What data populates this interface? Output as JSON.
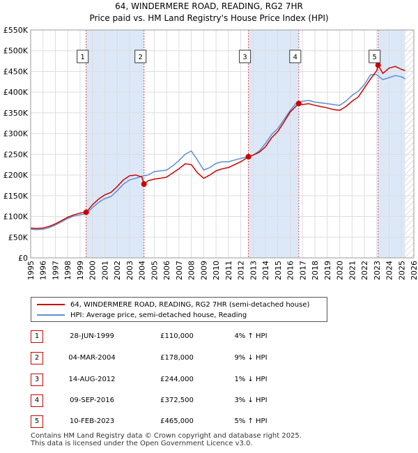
{
  "title_line1": "64, WINDERMERE ROAD, READING, RG2 7HR",
  "title_line2": "Price paid vs. HM Land Registry's House Price Index (HPI)",
  "colors": {
    "price_line": "#cc0000",
    "hpi_line": "#5b8fd0",
    "shade": "#dce8f8",
    "grid": "#dddddd",
    "marker_line": "#dd4444"
  },
  "legend": {
    "price_label": "64, WINDERMERE ROAD, READING, RG2 7HR (semi-detached house)",
    "hpi_label": "HPI: Average price, semi-detached house, Reading"
  },
  "transactions": [
    {
      "num": "1",
      "date": "28-JUN-1999",
      "price": "£110,000",
      "hpi": "4% ↑ HPI"
    },
    {
      "num": "2",
      "date": "04-MAR-2004",
      "price": "£178,000",
      "hpi": "9% ↓ HPI"
    },
    {
      "num": "3",
      "date": "14-AUG-2012",
      "price": "£244,000",
      "hpi": "1% ↓ HPI"
    },
    {
      "num": "4",
      "date": "09-SEP-2016",
      "price": "£372,500",
      "hpi": "3% ↓ HPI"
    },
    {
      "num": "5",
      "date": "10-FEB-2023",
      "price": "£465,000",
      "hpi": "5% ↑ HPI"
    }
  ],
  "footer": {
    "line1": "Contains HM Land Registry data © Crown copyright and database right 2025.",
    "line2": "This data is licensed under the Open Government Licence v3.0."
  },
  "chart_data": {
    "type": "line",
    "title": "64, WINDERMERE ROAD, READING, RG2 7HR",
    "subtitle": "Price paid vs. HM Land Registry's House Price Index (HPI)",
    "xlabel": "",
    "ylabel": "",
    "xlim": [
      1995,
      2026
    ],
    "ylim": [
      0,
      550000
    ],
    "y_ticks": [
      0,
      50000,
      100000,
      150000,
      200000,
      250000,
      300000,
      350000,
      400000,
      450000,
      500000,
      550000
    ],
    "y_tick_labels": [
      "£0",
      "£50K",
      "£100K",
      "£150K",
      "£200K",
      "£250K",
      "£300K",
      "£350K",
      "£400K",
      "£450K",
      "£500K",
      "£550K"
    ],
    "x_ticks": [
      1995,
      1996,
      1997,
      1998,
      1999,
      2000,
      2001,
      2002,
      2003,
      2004,
      2005,
      2006,
      2007,
      2008,
      2009,
      2010,
      2011,
      2012,
      2013,
      2014,
      2015,
      2016,
      2017,
      2018,
      2019,
      2020,
      2021,
      2022,
      2023,
      2024,
      2025,
      2026
    ],
    "x_tick_labels": [
      "1995",
      "1996",
      "1997",
      "1998",
      "1999",
      "2000",
      "2001",
      "2002",
      "2003",
      "2004",
      "2005",
      "2006",
      "2007",
      "2008",
      "2009",
      "2010",
      "2011",
      "2012",
      "2013",
      "2014",
      "2015",
      "2016",
      "2017",
      "2018",
      "2019",
      "2020",
      "2021",
      "2022",
      "2023",
      "2024",
      "2025",
      "2026"
    ],
    "grid": true,
    "shaded_ranges": [
      [
        1999.49,
        2004.17
      ],
      [
        2012.62,
        2016.69
      ],
      [
        2023.11,
        2025.3
      ]
    ],
    "hatched_range": [
      2025.3,
      2026
    ],
    "sales": [
      {
        "label": "1",
        "x": 1999.49,
        "y": 110000
      },
      {
        "label": "2",
        "x": 2004.17,
        "y": 178000
      },
      {
        "label": "3",
        "x": 2012.62,
        "y": 244000
      },
      {
        "label": "4",
        "x": 2016.69,
        "y": 372500
      },
      {
        "label": "5",
        "x": 2023.11,
        "y": 465000
      }
    ],
    "series": [
      {
        "name": "64, WINDERMERE ROAD, READING, RG2 7HR (semi-detached house)",
        "x": [
          1995.0,
          1995.5,
          1996.0,
          1996.5,
          1997.0,
          1997.5,
          1998.0,
          1998.5,
          1999.0,
          1999.49,
          2000.0,
          2000.5,
          2001.0,
          2001.5,
          2002.0,
          2002.5,
          2003.0,
          2003.5,
          2004.0,
          2004.17,
          2004.5,
          2005.0,
          2005.5,
          2006.0,
          2006.5,
          2007.0,
          2007.5,
          2008.0,
          2008.5,
          2009.0,
          2009.5,
          2010.0,
          2010.5,
          2011.0,
          2011.5,
          2012.0,
          2012.62,
          2013.0,
          2013.5,
          2014.0,
          2014.5,
          2015.0,
          2015.5,
          2016.0,
          2016.69,
          2017.0,
          2017.5,
          2018.0,
          2018.5,
          2019.0,
          2019.5,
          2020.0,
          2020.5,
          2021.0,
          2021.5,
          2022.0,
          2022.5,
          2023.0,
          2023.11,
          2023.5,
          2024.0,
          2024.5,
          2025.0,
          2025.3
        ],
        "values": [
          72000,
          71000,
          72000,
          76000,
          82000,
          90000,
          98000,
          104000,
          108000,
          110000,
          128000,
          142000,
          152000,
          158000,
          172000,
          188000,
          198000,
          200000,
          195000,
          178000,
          186000,
          190000,
          192000,
          195000,
          205000,
          215000,
          227000,
          225000,
          205000,
          192000,
          200000,
          210000,
          215000,
          218000,
          225000,
          232000,
          244000,
          248000,
          255000,
          268000,
          290000,
          305000,
          328000,
          352000,
          372500,
          370000,
          372000,
          368000,
          365000,
          362000,
          358000,
          356000,
          365000,
          378000,
          388000,
          410000,
          432000,
          452000,
          465000,
          445000,
          458000,
          462000,
          455000,
          452000
        ]
      },
      {
        "name": "HPI: Average price, semi-detached house, Reading",
        "x": [
          1995.0,
          1995.5,
          1996.0,
          1996.5,
          1997.0,
          1997.5,
          1998.0,
          1998.5,
          1999.0,
          1999.49,
          2000.0,
          2000.5,
          2001.0,
          2001.5,
          2002.0,
          2002.5,
          2003.0,
          2003.5,
          2004.0,
          2004.5,
          2005.0,
          2005.5,
          2006.0,
          2006.5,
          2007.0,
          2007.5,
          2008.0,
          2008.5,
          2009.0,
          2009.5,
          2010.0,
          2010.5,
          2011.0,
          2011.5,
          2012.0,
          2012.5,
          2013.0,
          2013.5,
          2014.0,
          2014.5,
          2015.0,
          2015.5,
          2016.0,
          2016.5,
          2017.0,
          2017.5,
          2018.0,
          2018.5,
          2019.0,
          2019.5,
          2020.0,
          2020.5,
          2021.0,
          2021.5,
          2022.0,
          2022.5,
          2023.0,
          2023.5,
          2024.0,
          2024.5,
          2025.0,
          2025.3
        ],
        "values": [
          69000,
          68000,
          69000,
          73000,
          79000,
          87000,
          95000,
          101000,
          104000,
          106000,
          121000,
          134000,
          143000,
          148000,
          162000,
          178000,
          188000,
          192000,
          197000,
          200000,
          208000,
          210000,
          212000,
          222000,
          235000,
          250000,
          258000,
          236000,
          212000,
          218000,
          228000,
          232000,
          232000,
          236000,
          240000,
          244000,
          248000,
          258000,
          276000,
          298000,
          312000,
          334000,
          356000,
          374000,
          378000,
          380000,
          376000,
          374000,
          372000,
          370000,
          368000,
          378000,
          392000,
          402000,
          418000,
          442000,
          442000,
          430000,
          435000,
          440000,
          437000,
          432000
        ]
      }
    ]
  }
}
